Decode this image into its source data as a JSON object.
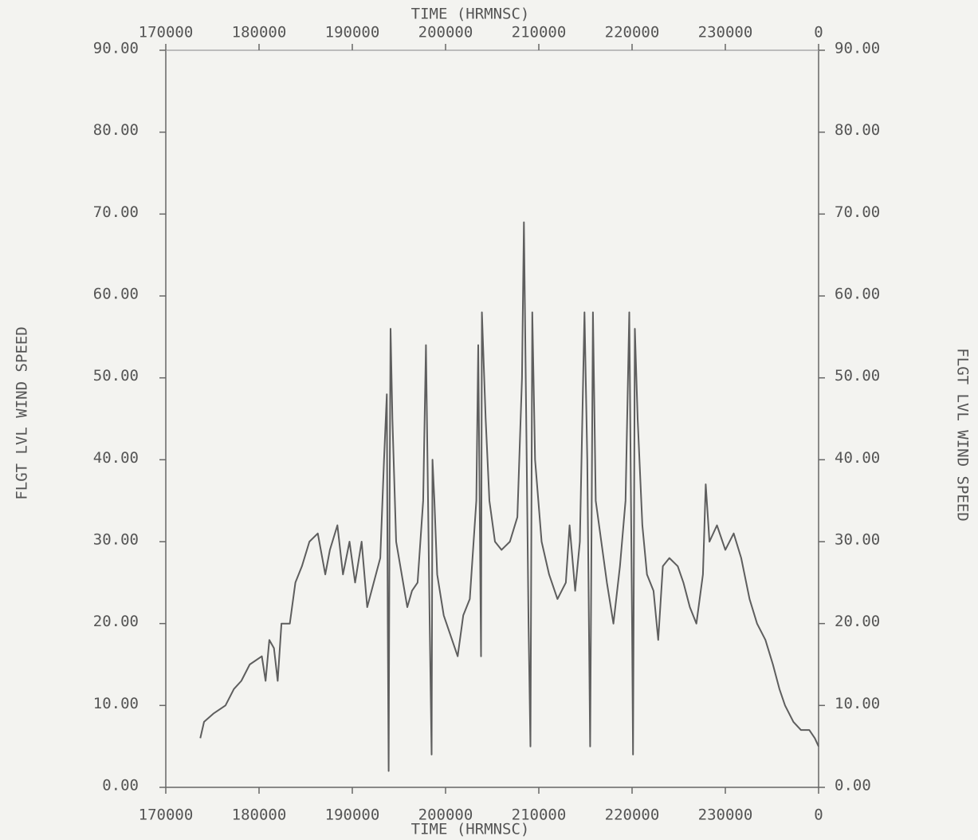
{
  "chart_data": {
    "type": "line",
    "xlabel": "TIME (HRMNSC)",
    "ylabel": "FLGT LVL WIND SPEED",
    "y2label": "FLGT LVL WIND SPEED",
    "xlim": [
      170000,
      240000
    ],
    "xticks": [
      170000,
      180000,
      190000,
      200000,
      210000,
      220000,
      230000,
      {
        "value": 240000,
        "label": "0"
      }
    ],
    "ylim": [
      0,
      90
    ],
    "yticks": [
      {
        "value": 0,
        "label": "0.00"
      },
      {
        "value": 10,
        "label": "10.00"
      },
      {
        "value": 20,
        "label": "20.00"
      },
      {
        "value": 30,
        "label": "30.00"
      },
      {
        "value": 40,
        "label": "40.00"
      },
      {
        "value": 50,
        "label": "50.00"
      },
      {
        "value": 60,
        "label": "60.00"
      },
      {
        "value": 70,
        "label": "70.00"
      },
      {
        "value": 80,
        "label": "80.00"
      },
      {
        "value": 90,
        "label": "90.00"
      }
    ],
    "y2lim": [
      0,
      90
    ],
    "y2ticks": [
      {
        "value": 0,
        "label": "0.00"
      },
      {
        "value": 10,
        "label": "10.00"
      },
      {
        "value": 20,
        "label": "20.00"
      },
      {
        "value": 30,
        "label": "30.00"
      },
      {
        "value": 40,
        "label": "40.00"
      },
      {
        "value": 50,
        "label": "50.00"
      },
      {
        "value": 60,
        "label": "60.00"
      },
      {
        "value": 70,
        "label": "70.00"
      },
      {
        "value": 80,
        "label": "80.00"
      },
      {
        "value": 90,
        "label": "90.00"
      }
    ],
    "color": "#5e5e5e",
    "x": [
      173700,
      174100,
      175100,
      176400,
      177300,
      178100,
      179000,
      180300,
      180700,
      181100,
      181600,
      182000,
      182400,
      183300,
      183900,
      184600,
      185400,
      186300,
      187100,
      187600,
      188400,
      189000,
      189700,
      190300,
      191000,
      191600,
      192300,
      193000,
      193400,
      193700,
      193800,
      193900,
      194000,
      194100,
      194300,
      194700,
      195300,
      195900,
      196400,
      197000,
      197600,
      197900,
      198300,
      198500,
      198600,
      198800,
      199100,
      199800,
      200400,
      201300,
      201900,
      202600,
      203300,
      203500,
      203800,
      203900,
      204300,
      204700,
      205300,
      206000,
      206900,
      207700,
      208200,
      208400,
      208700,
      208900,
      209100,
      209300,
      209600,
      210300,
      211100,
      212000,
      212900,
      213300,
      213900,
      214400,
      214900,
      215200,
      215500,
      215800,
      216100,
      216700,
      217300,
      218000,
      218700,
      219300,
      219700,
      220000,
      220100,
      220300,
      220600,
      221100,
      221600,
      222300,
      222800,
      223300,
      224000,
      224900,
      225500,
      226200,
      226900,
      227600,
      227900,
      228300,
      229100,
      230000,
      230900,
      231700,
      232600,
      233400,
      234300,
      235100,
      235800,
      236400,
      237300,
      238100,
      239000,
      239600,
      240000
    ],
    "values": [
      6,
      8,
      9,
      10,
      12,
      13,
      15,
      16,
      13,
      18,
      17,
      13,
      20,
      20,
      25,
      27,
      30,
      31,
      26,
      29,
      32,
      26,
      30,
      25,
      30,
      22,
      25,
      28,
      40,
      48,
      20,
      2,
      35,
      56,
      45,
      30,
      26,
      22,
      24,
      25,
      35,
      54,
      20,
      4,
      40,
      35,
      26,
      21,
      19,
      16,
      21,
      23,
      35,
      54,
      16,
      58,
      45,
      35,
      30,
      29,
      30,
      33,
      50,
      69,
      40,
      20,
      5,
      58,
      40,
      30,
      26,
      23,
      25,
      32,
      24,
      30,
      58,
      40,
      5,
      58,
      35,
      30,
      25,
      20,
      27,
      35,
      58,
      20,
      4,
      56,
      45,
      32,
      26,
      24,
      18,
      27,
      28,
      27,
      25,
      22,
      20,
      26,
      37,
      30,
      32,
      29,
      31,
      28,
      23,
      20,
      18,
      15,
      12,
      10,
      8,
      7,
      7,
      6,
      5
    ]
  }
}
